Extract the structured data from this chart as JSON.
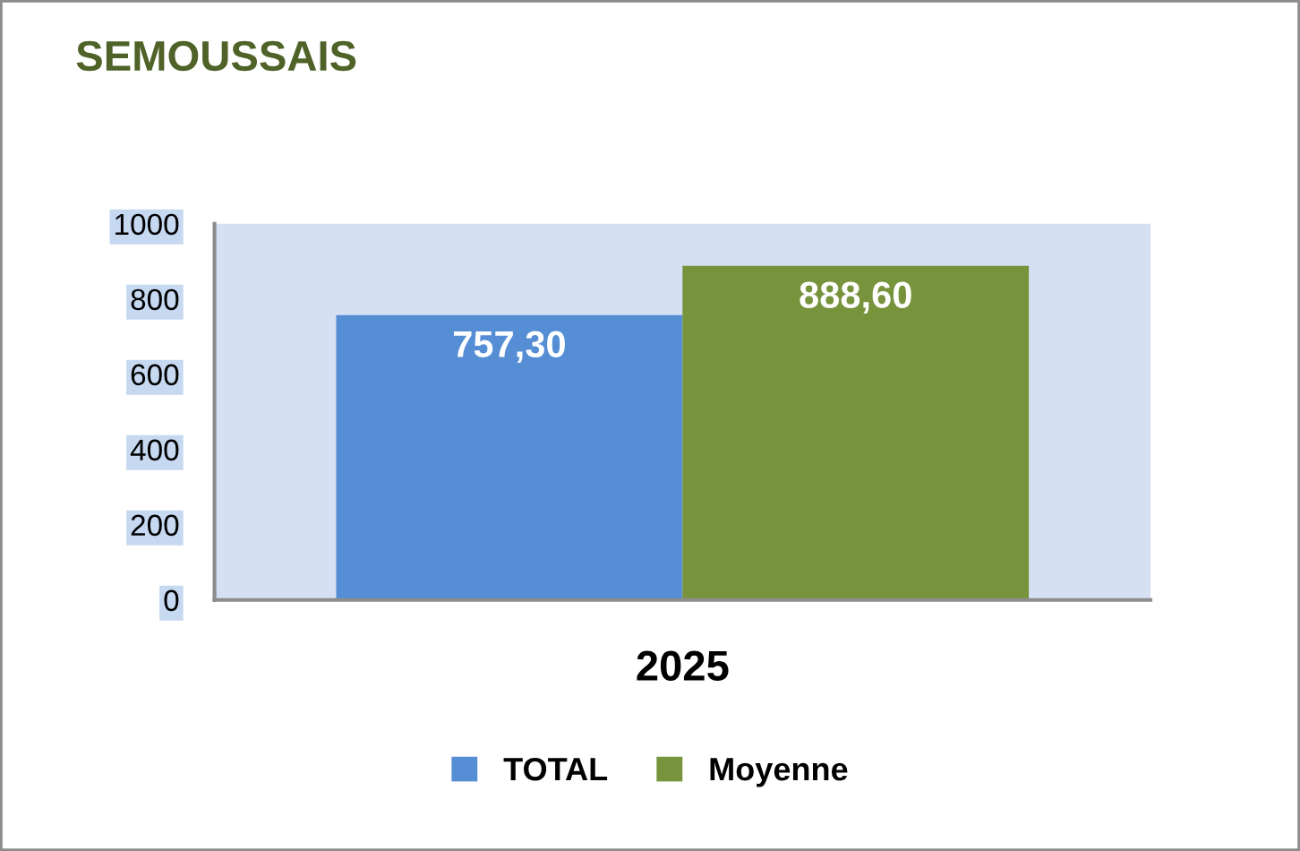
{
  "chart_data": {
    "type": "bar",
    "title": "SEMOUSSAIS",
    "categories": [
      "2025"
    ],
    "series": [
      {
        "name": "TOTAL",
        "color": "#558ed5",
        "values": [
          757.3
        ],
        "value_labels": [
          "757,30"
        ]
      },
      {
        "name": "Moyenne",
        "color": "#77933c",
        "values": [
          888.6
        ],
        "value_labels": [
          "888,60"
        ]
      }
    ],
    "ylim": [
      0,
      1000
    ],
    "yticks": [
      0,
      200,
      400,
      600,
      800,
      1000
    ],
    "legend": "bottom"
  }
}
